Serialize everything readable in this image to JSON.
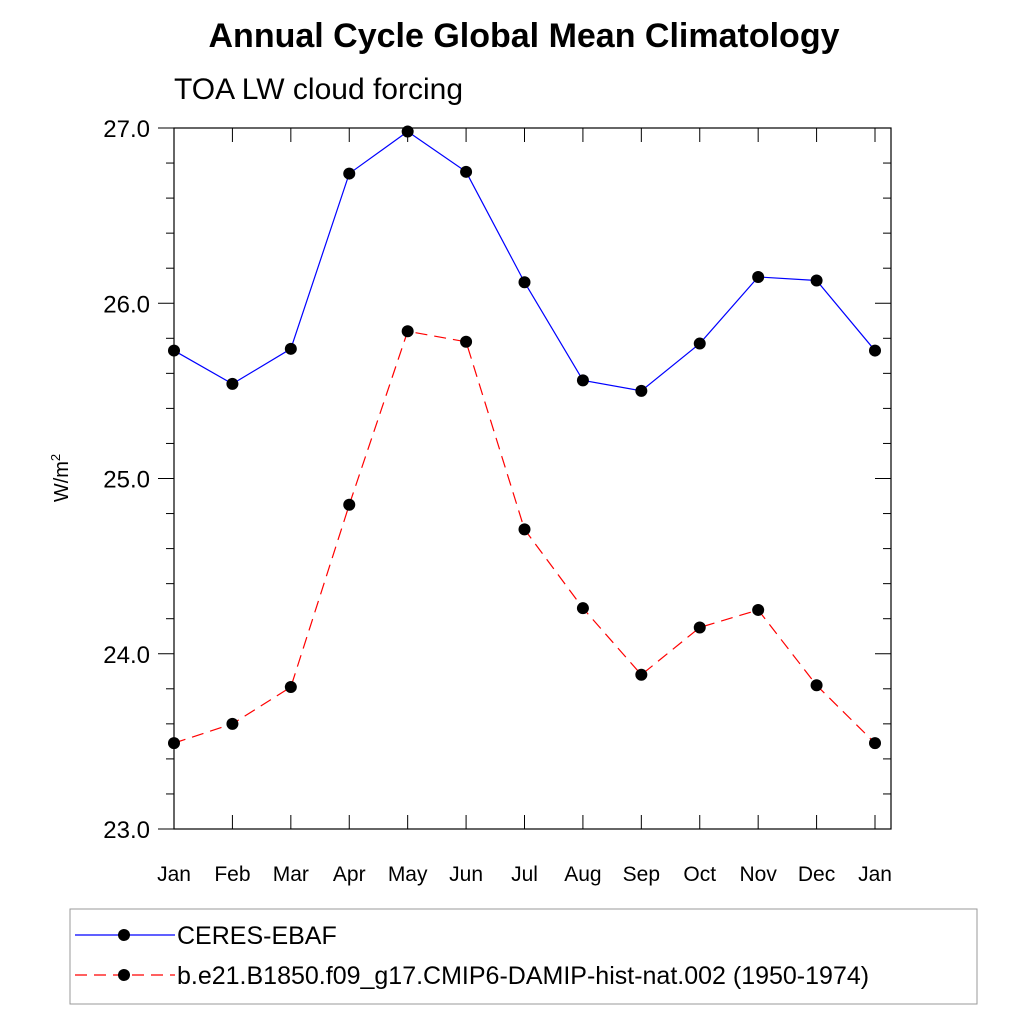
{
  "chart_data": {
    "type": "line",
    "title": "Annual Cycle Global Mean Climatology",
    "subtitle": "TOA LW cloud forcing",
    "ylabel": "W/m",
    "ylabel_superscript": "2",
    "xlabel": "",
    "categories": [
      "Jan",
      "Feb",
      "Mar",
      "Apr",
      "May",
      "Jun",
      "Jul",
      "Aug",
      "Sep",
      "Oct",
      "Nov",
      "Dec",
      "Jan"
    ],
    "ylim": [
      23.0,
      27.0
    ],
    "yticks": [
      "23.0",
      "24.0",
      "25.0",
      "26.0",
      "27.0"
    ],
    "grid": false,
    "legend_position": "bottom",
    "series": [
      {
        "name": "CERES-EBAF",
        "color": "#0000ff",
        "dash": "solid",
        "values": [
          25.73,
          25.54,
          25.74,
          26.74,
          26.98,
          26.75,
          26.12,
          25.56,
          25.5,
          25.77,
          26.15,
          26.13,
          25.73
        ]
      },
      {
        "name": "b.e21.B1850.f09_g17.CMIP6-DAMIP-hist-nat.002 (1950-1974)",
        "color": "#ff0000",
        "dash": "dashed",
        "values": [
          23.49,
          23.6,
          23.81,
          24.85,
          25.84,
          25.78,
          24.71,
          24.26,
          23.88,
          24.15,
          24.25,
          23.82,
          23.49
        ]
      }
    ]
  }
}
